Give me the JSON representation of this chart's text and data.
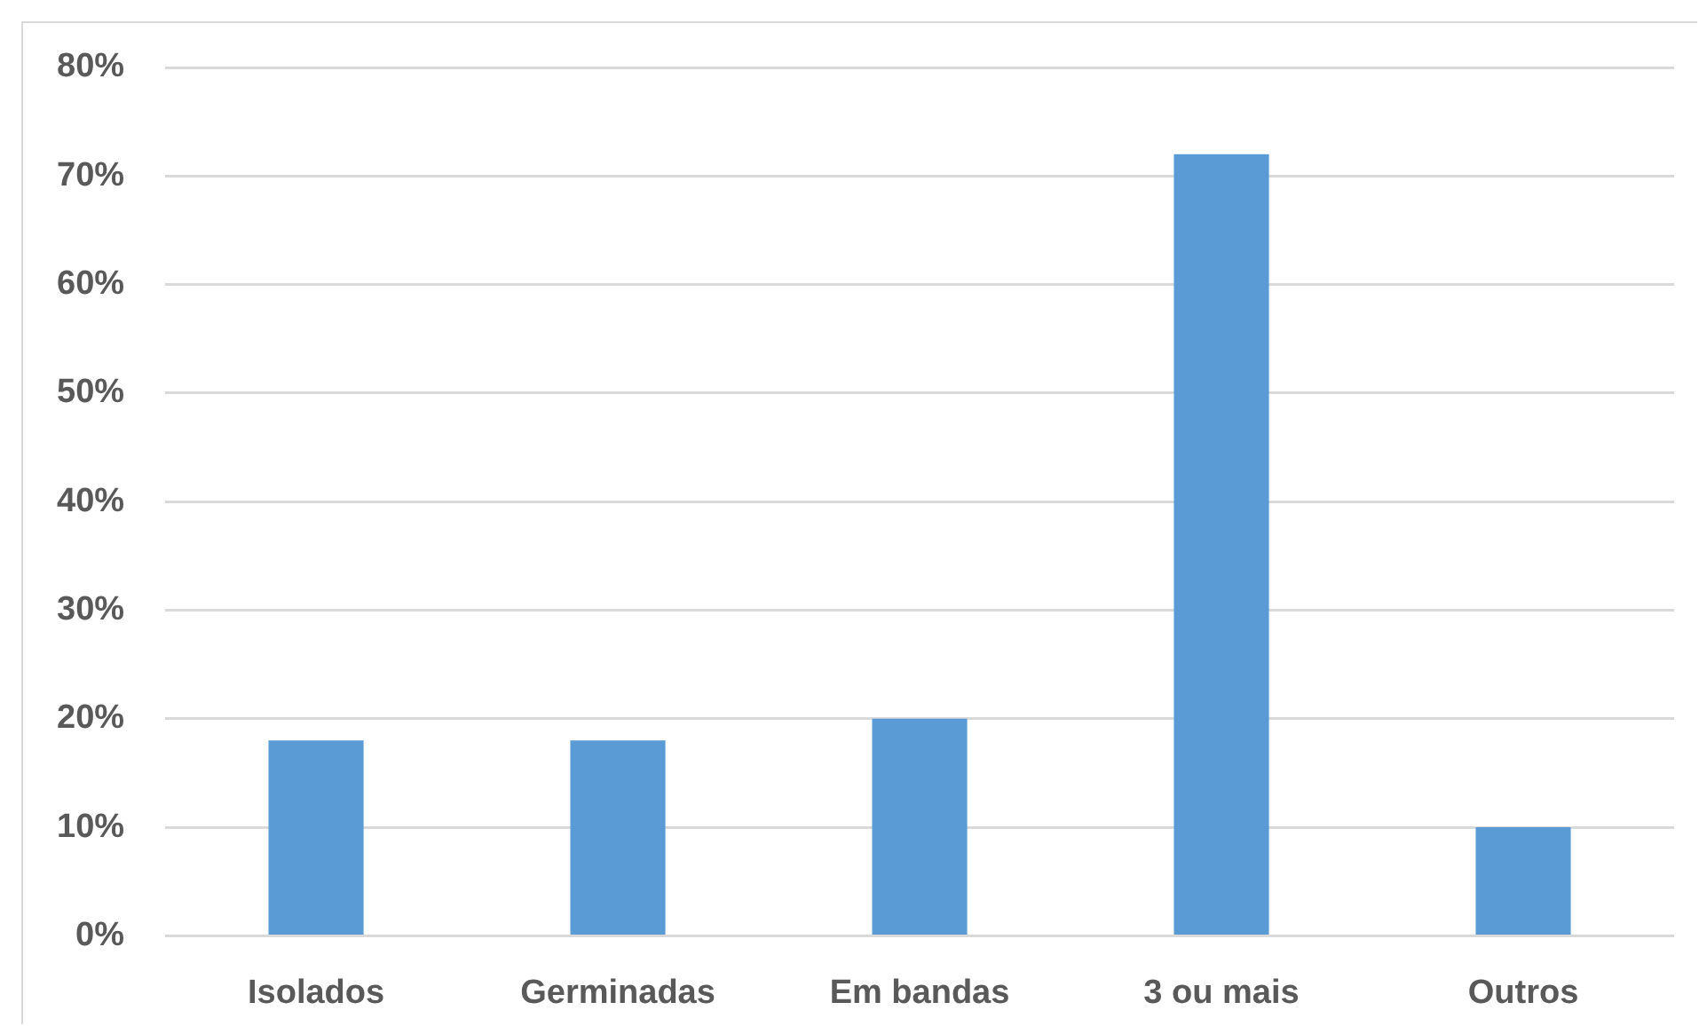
{
  "chart_data": {
    "type": "bar",
    "categories": [
      "Isolados",
      "Germinadas",
      "Em bandas",
      "3 ou mais",
      "Outros"
    ],
    "values": [
      18,
      18,
      20,
      72,
      10
    ],
    "color": "#5b9bd5",
    "ylim": [
      0,
      80
    ],
    "yticks": [
      {
        "value": 0,
        "label": "0%"
      },
      {
        "value": 10,
        "label": "10%"
      },
      {
        "value": 20,
        "label": "20%"
      },
      {
        "value": 30,
        "label": "30%"
      },
      {
        "value": 40,
        "label": "40%"
      },
      {
        "value": 50,
        "label": "50%"
      },
      {
        "value": 60,
        "label": "60%"
      },
      {
        "value": 70,
        "label": "70%"
      },
      {
        "value": 80,
        "label": "80%"
      }
    ],
    "grid": "y"
  }
}
